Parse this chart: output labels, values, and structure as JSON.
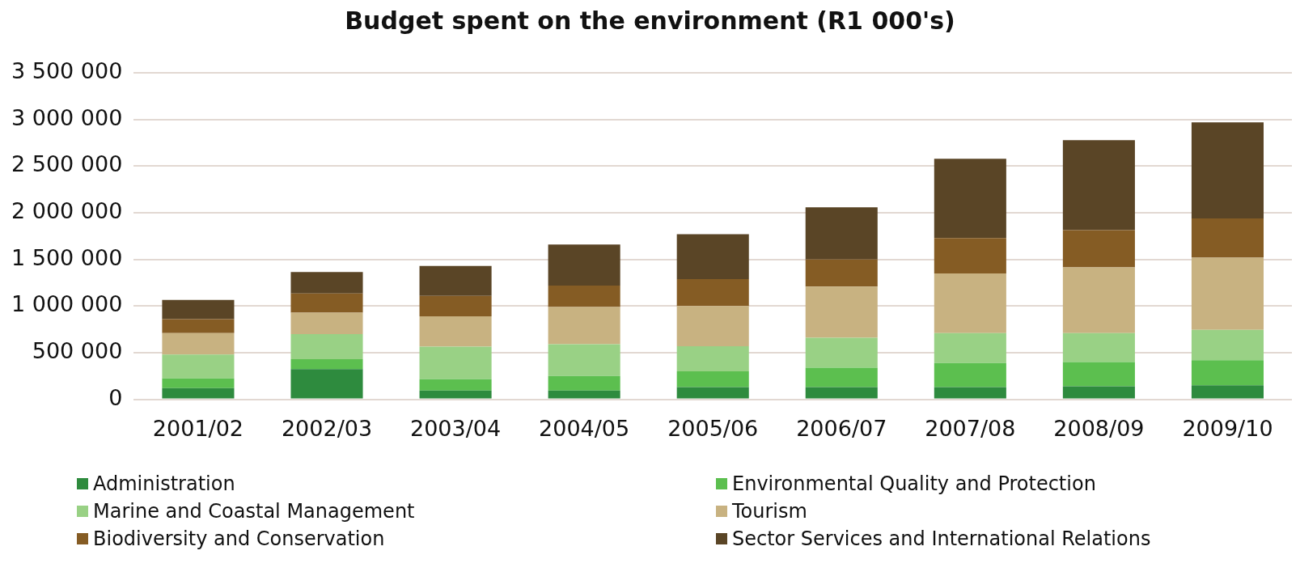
{
  "chart_data": {
    "type": "bar",
    "title": "Budget spent on the environment (R1 000's)",
    "stacked": true,
    "grid": "y",
    "legend": "bottom",
    "categories": [
      "2001/02",
      "2002/03",
      "2003/04",
      "2004/05",
      "2005/06",
      "2006/07",
      "2007/08",
      "2008/09",
      "2009/10"
    ],
    "ylim": [
      0,
      3500000
    ],
    "yticks": [
      0,
      {
        "value": 500000,
        "label": "500 000"
      },
      {
        "value": 1000000,
        "label": "1 000 000"
      },
      {
        "value": 1500000,
        "label": "1 500 000"
      },
      {
        "value": 2000000,
        "label": "2 000 000"
      },
      {
        "value": 2500000,
        "label": "2 500 000"
      },
      {
        "value": 3000000,
        "label": "3 000 000"
      },
      {
        "value": 3500000,
        "label": "3 500 000"
      }
    ],
    "series": [
      {
        "name": "Administration",
        "color": "#2e8b3e",
        "values": [
          120000,
          325000,
          95000,
          95000,
          130000,
          130000,
          130000,
          140000,
          150000
        ]
      },
      {
        "name": "Environmental Quality and Protection",
        "color": "#5cbf4f",
        "values": [
          105000,
          105000,
          120000,
          155000,
          170000,
          210000,
          260000,
          260000,
          270000
        ]
      },
      {
        "name": "Marine and Coastal Management",
        "color": "#99d185",
        "values": [
          255000,
          270000,
          350000,
          340000,
          270000,
          320000,
          320000,
          310000,
          325000
        ]
      },
      {
        "name": "Tourism",
        "color": "#c8b281",
        "values": [
          230000,
          230000,
          325000,
          400000,
          430000,
          550000,
          640000,
          705000,
          775000
        ]
      },
      {
        "name": "Biodiversity and Conservation",
        "color": "#855c24",
        "values": [
          150000,
          205000,
          220000,
          230000,
          290000,
          290000,
          380000,
          400000,
          420000
        ]
      },
      {
        "name": "Sector Services and International Relations",
        "color": "#5a4526",
        "values": [
          205000,
          230000,
          320000,
          440000,
          480000,
          560000,
          850000,
          965000,
          1030000
        ]
      }
    ]
  }
}
